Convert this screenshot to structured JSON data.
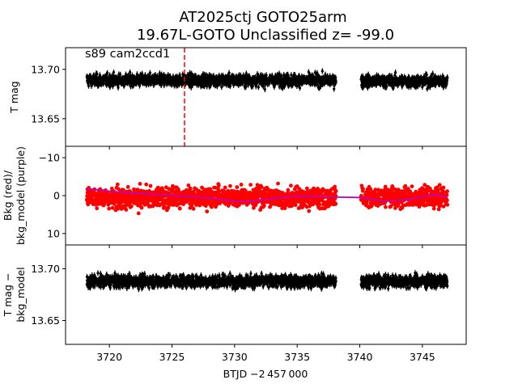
{
  "chart_data": {
    "type": "scatter",
    "title": [
      "AT2025ctj  GOTO25arm",
      "19.67L-GOTO Unclassified z= -99.0"
    ],
    "xlabel": "BTJD −2 457 000",
    "xlim": [
      3716.5,
      3748.5
    ],
    "xticks": [
      "3720",
      "3725",
      "3730",
      "3735",
      "3740",
      "3745"
    ],
    "xtick_values": [
      3720,
      3725,
      3730,
      3735,
      3740,
      3745
    ],
    "panels": [
      {
        "name": "flux-panel",
        "ylabel": [
          "T mag"
        ],
        "ylim": [
          13.722,
          13.622
        ],
        "yticks": [
          "13.65",
          "13.70"
        ],
        "ytick_values": [
          13.65,
          13.7
        ],
        "annotation": "s89 cam2ccd1",
        "event_line_x": 3726.0,
        "event_line_color": "#ff0000",
        "series": [
          {
            "color": "#000000",
            "segments": [
              {
                "x_start": 3718.2,
                "x_end": 3738.1,
                "center": 13.689,
                "scatter": 0.009
              },
              {
                "x_start": 3740.1,
                "x_end": 3747.0,
                "center": 13.688,
                "scatter": 0.009
              }
            ]
          }
        ]
      },
      {
        "name": "background-panel",
        "ylabel": [
          "Bkg (red)/",
          "bkg_model (purple)"
        ],
        "ylim": [
          -13,
          13
        ],
        "yticks": [
          "10",
          "0",
          "−10"
        ],
        "ytick_values": [
          10,
          0,
          -10
        ],
        "series": [
          {
            "color": "#ff0000",
            "segments": [
              {
                "x_start": 3718.2,
                "x_end": 3738.1,
                "center": 0.5,
                "scatter": 4.0
              },
              {
                "x_start": 3740.1,
                "x_end": 3747.0,
                "center": 0.5,
                "scatter": 4.0
              }
            ]
          },
          {
            "color": "#bf00bf",
            "x": [
              3718.2,
              3720,
              3722,
              3724,
              3726,
              3728,
              3730,
              3731,
              3733,
              3735,
              3737,
              3738.1,
              3740.1,
              3742,
              3744,
              3746,
              3747
            ],
            "y": [
              -1.8,
              -1.2,
              -0.6,
              -0.3,
              0.2,
              0.6,
              1.5,
              1.6,
              0.8,
              0.1,
              0.3,
              0.4,
              0.5,
              1.5,
              1.0,
              -0.3,
              0.4
            ]
          }
        ]
      },
      {
        "name": "corrected-panel",
        "ylabel": [
          "T mag −",
          "bkg_model"
        ],
        "ylim": [
          13.723,
          13.627
        ],
        "yticks": [
          "13.65",
          "13.70"
        ],
        "ytick_values": [
          13.65,
          13.7
        ],
        "series": [
          {
            "color": "#000000",
            "segments": [
              {
                "x_start": 3718.2,
                "x_end": 3738.1,
                "center": 13.688,
                "scatter": 0.009
              },
              {
                "x_start": 3740.1,
                "x_end": 3747.0,
                "center": 13.688,
                "scatter": 0.009
              }
            ]
          }
        ]
      }
    ],
    "grid": false
  }
}
